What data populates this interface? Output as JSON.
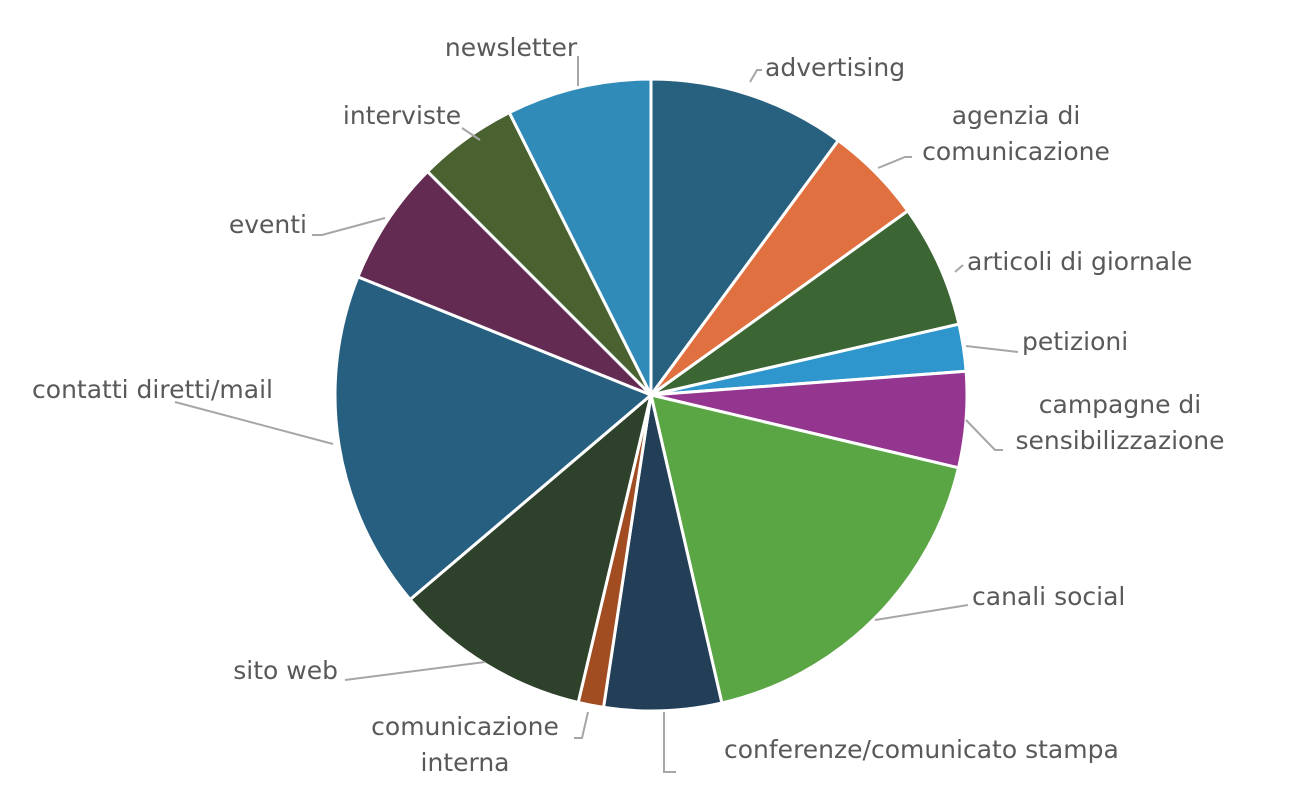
{
  "chart_data": {
    "type": "pie",
    "categories": [
      "advertising",
      "agenzia di comunicazione",
      "articoli di giornale",
      "petizioni",
      "campagne di sensibilizzazione",
      "canali social",
      "conferenze/comunicato stampa",
      "comunicazione interna",
      "sito web",
      "contatti diretti/mail",
      "eventi",
      "interviste",
      "newsletter"
    ],
    "values": [
      10.1,
      5,
      6.3,
      2.4,
      4.9,
      17.7,
      6,
      1.3,
      10.1,
      17.3,
      6.4,
      5.1,
      7.4
    ],
    "colors": [
      "#28607f",
      "#e07040",
      "#3b6533",
      "#2e96cc",
      "#943590",
      "#5aa544",
      "#233f58",
      "#a24c22",
      "#2e412a",
      "#265f80",
      "#632a52",
      "#4a6230",
      "#318bb8"
    ]
  }
}
